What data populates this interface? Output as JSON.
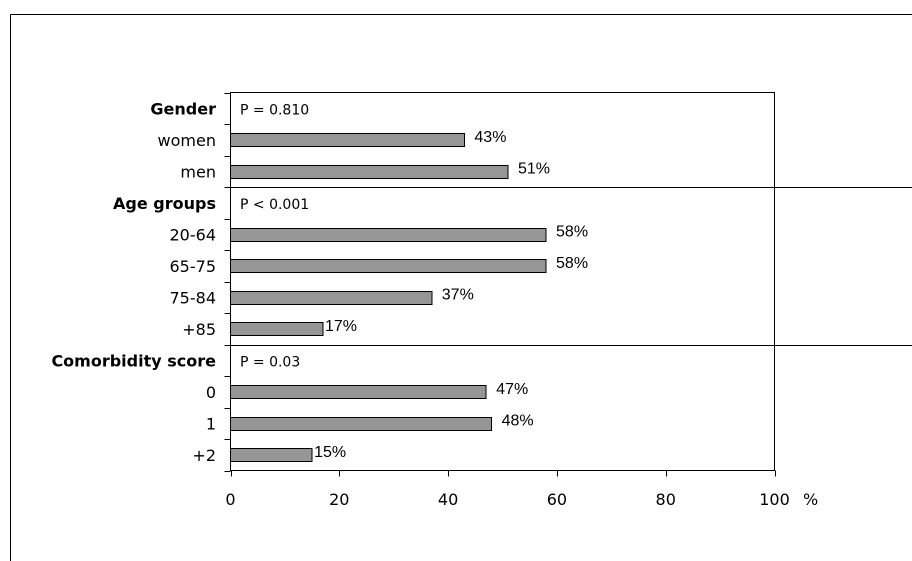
{
  "chart_data": {
    "type": "bar",
    "orientation": "horizontal",
    "x_unit": "%",
    "xlim": [
      0,
      100
    ],
    "x_ticks": [
      0,
      20,
      40,
      60,
      80,
      100
    ],
    "bar_color": "#969696",
    "groups": [
      {
        "title": "Gender",
        "p_value": "P = 0.810",
        "items": [
          {
            "category": "women",
            "value": 43,
            "label": "43%"
          },
          {
            "category": "men",
            "value": 51,
            "label": "51%"
          }
        ]
      },
      {
        "title": "Age groups",
        "p_value": "P < 0.001",
        "items": [
          {
            "category": "20-64",
            "value": 58,
            "label": "58%"
          },
          {
            "category": "65-75",
            "value": 58,
            "label": "58%"
          },
          {
            "category": "75-84",
            "value": 37,
            "label": "37%"
          },
          {
            "category": "+85",
            "value": 17,
            "label": "17%"
          }
        ]
      },
      {
        "title": "Comorbidity score",
        "p_value": "P = 0.03",
        "items": [
          {
            "category": "0",
            "value": 47,
            "label": "47%"
          },
          {
            "category": "1",
            "value": 48,
            "label": "48%"
          },
          {
            "category": "+2",
            "value": 15,
            "label": "15%"
          }
        ]
      }
    ]
  }
}
